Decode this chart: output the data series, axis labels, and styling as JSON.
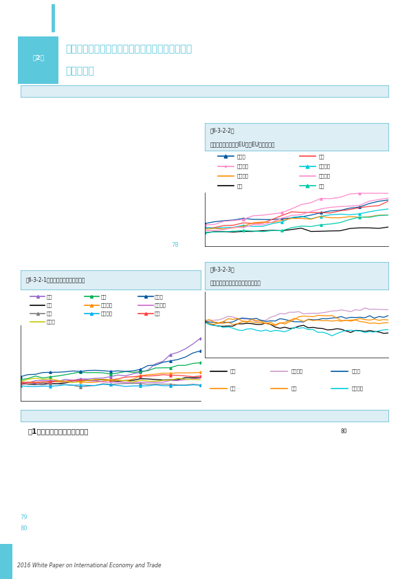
{
  "page_bg": "#ffffff",
  "header_bg": "#1c2a3a",
  "cyan_accent": "#5bc8dc",
  "light_blue_banner_bg": "#ddeef5",
  "light_blue_banner_border": "#88ccdd",
  "section_badge_bg": "#5bc8dc",
  "section_badge_text": "第2節",
  "section_title_line1": "ドイツをはじめとする地域産業・地域輸出拡大の",
  "section_title_line2": "要因・要素",
  "chart1_title": "第Ⅱ-3-2-1図　輸出上位国の輸出推移",
  "chart2_title_line1": "第Ⅱ-3-2-2図",
  "chart2_title_line2": "主要国の輸出推移（EUは非EU向けのみ）",
  "chart3_title_line1": "第Ⅱ-3-2-3図",
  "chart3_title_line2": "主要国の実質実効為替レートの推移",
  "subsection_text": "（1）ドイツの雇用と地域格差",
  "footer_text": "2016 White Paper on International Economy and Trade",
  "page_note_78": "78",
  "page_note_80": "80",
  "page_num_79": "79",
  "page_num_80": "80",
  "chart1_legend": [
    "中国",
    "米国",
    "ドイツ",
    "日本",
    "オランダ",
    "フランス",
    "韓国",
    "イタリア",
    "英国",
    "ロシア"
  ],
  "chart1_colors": [
    "#9966cc",
    "#00b050",
    "#0056a0",
    "#000000",
    "#ff8c00",
    "#cc66cc",
    "#808080",
    "#00b0f0",
    "#ff4040",
    "#c8c800"
  ],
  "chart1_markers": [
    "none",
    "triangle_up",
    "diamond",
    "none",
    "triangle_up",
    "none",
    "triangle_up",
    "triangle_up",
    "triangle_up",
    "none"
  ],
  "chart2_legend": [
    "ドイツ",
    "英国",
    "スペイン",
    "イタリア",
    "フランス",
    "オランダ",
    "日本",
    "米国"
  ],
  "chart2_colors": [
    "#0056a0",
    "#ff4040",
    "#ff88cc",
    "#00ccdd",
    "#ff8c00",
    "#ff88cc",
    "#000000",
    "#00ccaa"
  ],
  "chart3_legend": [
    "日本",
    "フランス",
    "ドイツ",
    "英国",
    "米国",
    "イタリア"
  ],
  "chart3_colors": [
    "#000000",
    "#cc99cc",
    "#0056a0",
    "#ff8c00",
    "#ff8c00",
    "#00ccdd"
  ]
}
